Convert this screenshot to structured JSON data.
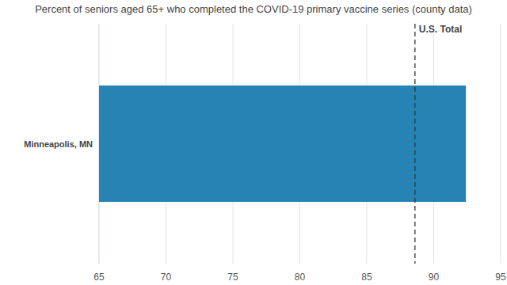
{
  "chart_data": {
    "type": "bar",
    "title": "Percent of seniors aged 65+ who completed the COVID-19 primary vaccine series (county data)",
    "orientation": "horizontal",
    "categories": [
      "Minneapolis, MN"
    ],
    "values": [
      92.4
    ],
    "color": "#2783b3",
    "xlim": [
      65,
      95
    ],
    "xticks": [
      65,
      70,
      75,
      80,
      85,
      90,
      95
    ],
    "grid": true,
    "annotations": [
      {
        "label": "U.S. Total",
        "value": 88.6
      }
    ]
  }
}
